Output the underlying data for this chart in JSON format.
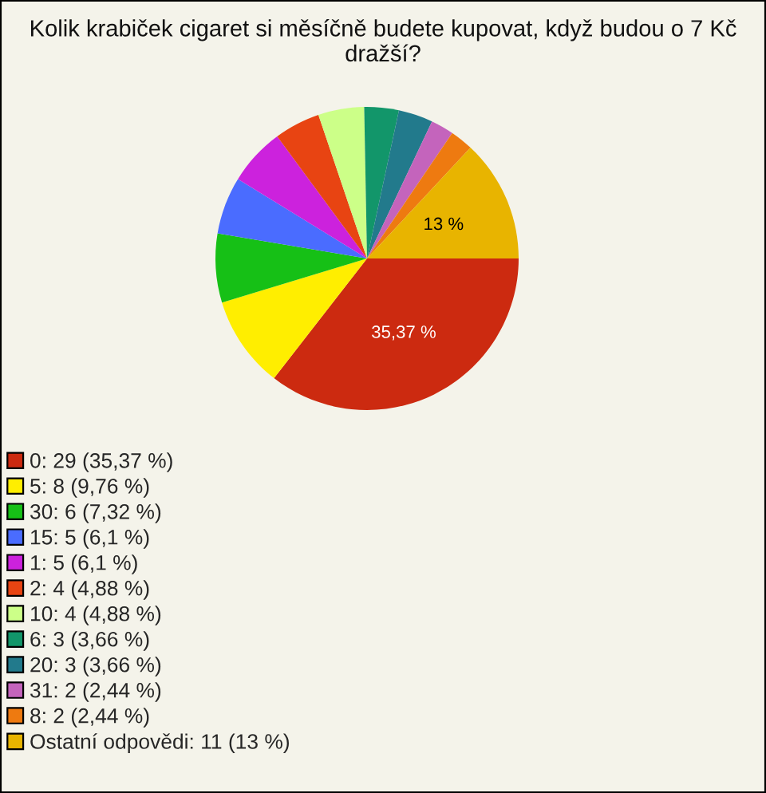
{
  "chart_data": {
    "type": "pie",
    "title": "Kolik krabiček cigaret si měsíčně budete kupovat, když budou o 7 Kč dražší?",
    "categories": [
      "0: 29 (35,37 %)",
      "5: 8 (9,76 %)",
      "30: 6 (7,32 %)",
      "15: 5 (6,1 %)",
      "1: 5 (6,1 %)",
      "2: 4 (4,88 %)",
      "10: 4 (4,88 %)",
      "6: 3 (3,66 %)",
      "20: 3 (3,66 %)",
      "31: 2 (2,44 %)",
      "8: 2 (2,44 %)",
      "Ostatní odpovědi: 11 (13 %)"
    ],
    "values": [
      35.37,
      9.76,
      7.32,
      6.1,
      6.1,
      4.88,
      4.88,
      3.66,
      3.66,
      2.44,
      2.44,
      13
    ],
    "colors": [
      "#cc2a10",
      "#ffee00",
      "#16c016",
      "#4a6cff",
      "#cc22dd",
      "#e84412",
      "#ccff88",
      "#12966a",
      "#227a8c",
      "#c464bc",
      "#ee7a10",
      "#e8b400"
    ],
    "value_labels": [
      "35,37 %",
      null,
      null,
      null,
      null,
      null,
      null,
      null,
      null,
      null,
      null,
      "13 %"
    ],
    "legend": "bottom left"
  }
}
